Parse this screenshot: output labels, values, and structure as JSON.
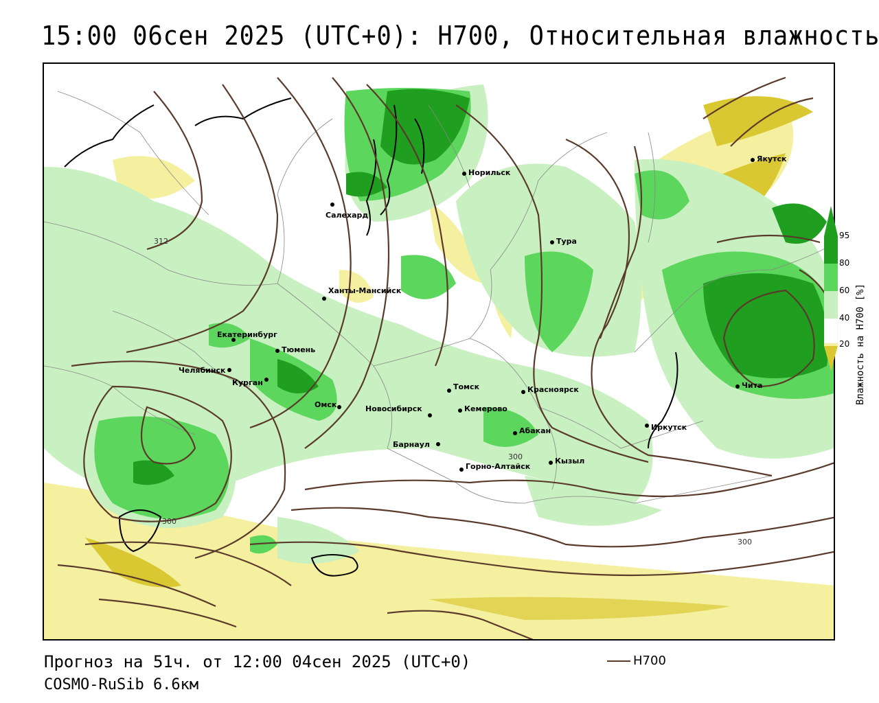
{
  "title": "15:00 06сен 2025 (UTC+0): H700, Относительная влажность",
  "forecast": "Прогноз на 51ч. от 12:00 04сен 2025 (UTC+0)",
  "model": "COSMO-RuSib 6.6км",
  "legend": {
    "h700_label": "H700"
  },
  "colorbar": {
    "title": "Влажность на H700 [%]",
    "ticks": [
      "95",
      "80",
      "60",
      "40",
      "20"
    ],
    "colors": {
      "95": "#1f9e1f",
      "80": "#5cd65c",
      "60": "#c8f0c0",
      "40": "#ffffff",
      "20": "#f5f0a0",
      "low": "#d9c832"
    }
  },
  "isolines": {
    "labels": [
      "312",
      "300",
      "300",
      "300"
    ],
    "color": "#5a3a2a"
  },
  "cities": [
    {
      "name": "Норильск"
    },
    {
      "name": "Якутск"
    },
    {
      "name": "Салехард"
    },
    {
      "name": "Тура"
    },
    {
      "name": "Ханты-Мансийск"
    },
    {
      "name": "Екатеринбург"
    },
    {
      "name": "Тюмень"
    },
    {
      "name": "Челябинск"
    },
    {
      "name": "Курган"
    },
    {
      "name": "Омск"
    },
    {
      "name": "Новосибирск"
    },
    {
      "name": "Томск"
    },
    {
      "name": "Кемерово"
    },
    {
      "name": "Красноярск"
    },
    {
      "name": "Барнаул"
    },
    {
      "name": "Абакан"
    },
    {
      "name": "Горно-Алтайск"
    },
    {
      "name": "Кызыл"
    },
    {
      "name": "Иркутск"
    },
    {
      "name": "Чита"
    }
  ]
}
